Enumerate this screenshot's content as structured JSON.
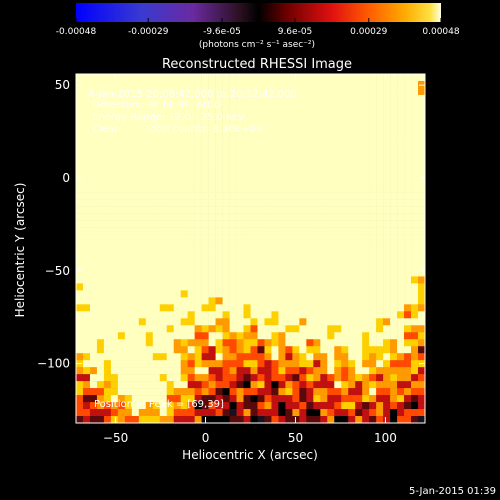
{
  "colorbar": {
    "ticks": [
      "-0.00048",
      "-0.00029",
      "-9.6e-05",
      "9.6e-05",
      "0.00029",
      "0.00048"
    ],
    "tick_values": [
      -0.00048,
      -0.00029,
      -9.6e-05,
      9.6e-05,
      0.00029,
      0.00048
    ],
    "range": [
      -0.00048,
      0.00048
    ],
    "units": "(photons cm⁻² s⁻¹ asec⁻²)"
  },
  "chart_data": {
    "type": "heatmap",
    "title": "Reconstructed RHESSI Image",
    "xlabel": "Heliocentric X (arcsec)",
    "ylabel": "Heliocentric Y (arcsec)",
    "xlim": [
      -72,
      122
    ],
    "ylim": [
      -132,
      56
    ],
    "xticks": [
      -50,
      0,
      50,
      100
    ],
    "xtick_labels": [
      "−50",
      "0",
      "50",
      "100"
    ],
    "yticks": [
      50,
      0,
      -50,
      -100
    ],
    "ytick_labels": [
      "50",
      "0",
      "−50",
      "−100"
    ],
    "annotations": [
      "4-Jan-2015 20:06:42.000 to 20:12:42.000",
      "Detectors: 3F 6F 9F, Att 0",
      "Energy Range: 12.0 - 25.0 keV",
      "Clean",
      "Total counts: 3.30E+03",
      "Position of Peak = [69,39]"
    ],
    "peak": [
      69,
      39
    ],
    "colormap": [
      "#0000d0",
      "#5a3ab0",
      "#6a2e95",
      "#1a1020",
      "#000000",
      "#5a0a0a",
      "#c01010",
      "#ff4a00",
      "#ff9a00",
      "#ffd000",
      "#ffffc0"
    ]
  },
  "footer": {
    "date": "5-Jan-2015 01:39"
  }
}
